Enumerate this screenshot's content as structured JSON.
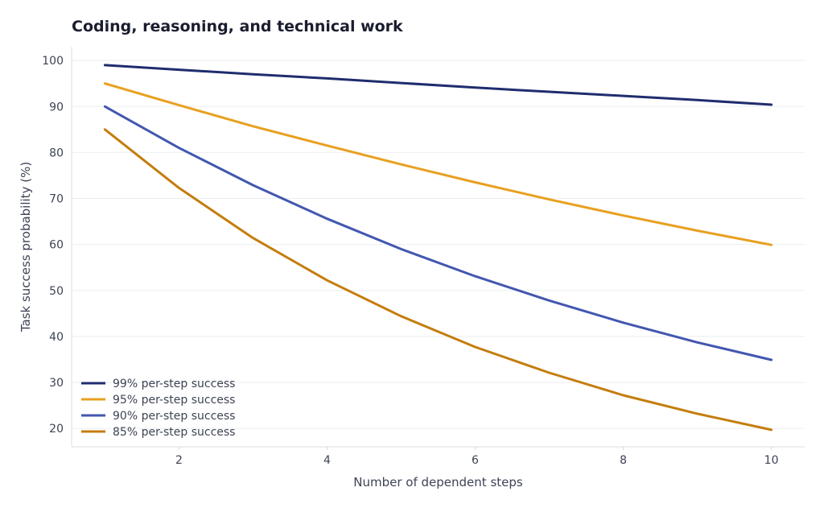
{
  "chart_data": {
    "type": "line",
    "title": "Coding, reasoning, and technical work",
    "xlabel": "Number of dependent steps",
    "ylabel": "Task success probability (%)",
    "xlim": [
      0.55,
      10.45
    ],
    "ylim": [
      16,
      103
    ],
    "x": [
      1,
      2,
      3,
      4,
      5,
      6,
      7,
      8,
      9,
      10
    ],
    "xticks": [
      2,
      4,
      6,
      8,
      10
    ],
    "yticks": [
      20,
      30,
      40,
      50,
      60,
      70,
      80,
      90,
      100
    ],
    "grid": true,
    "legend_position": "bottom-left",
    "series": [
      {
        "name": "99% per-step success",
        "color": "#1f2d6e",
        "values": [
          99.0,
          98.0,
          97.0,
          96.1,
          95.1,
          94.1,
          93.2,
          92.3,
          91.4,
          90.4
        ]
      },
      {
        "name": "95% per-step success",
        "color": "#e8a020",
        "values": [
          95.0,
          90.3,
          85.7,
          81.5,
          77.4,
          73.5,
          69.8,
          66.3,
          63.0,
          59.9
        ]
      },
      {
        "name": "90% per-step success",
        "color": "#4357b0",
        "values": [
          90.0,
          81.0,
          72.9,
          65.6,
          59.0,
          53.1,
          47.8,
          43.0,
          38.7,
          34.9
        ]
      },
      {
        "name": "85% per-step success",
        "color": "#c47d0e",
        "values": [
          85.0,
          72.3,
          61.4,
          52.2,
          44.4,
          37.7,
          32.1,
          27.2,
          23.2,
          19.7
        ]
      }
    ]
  }
}
